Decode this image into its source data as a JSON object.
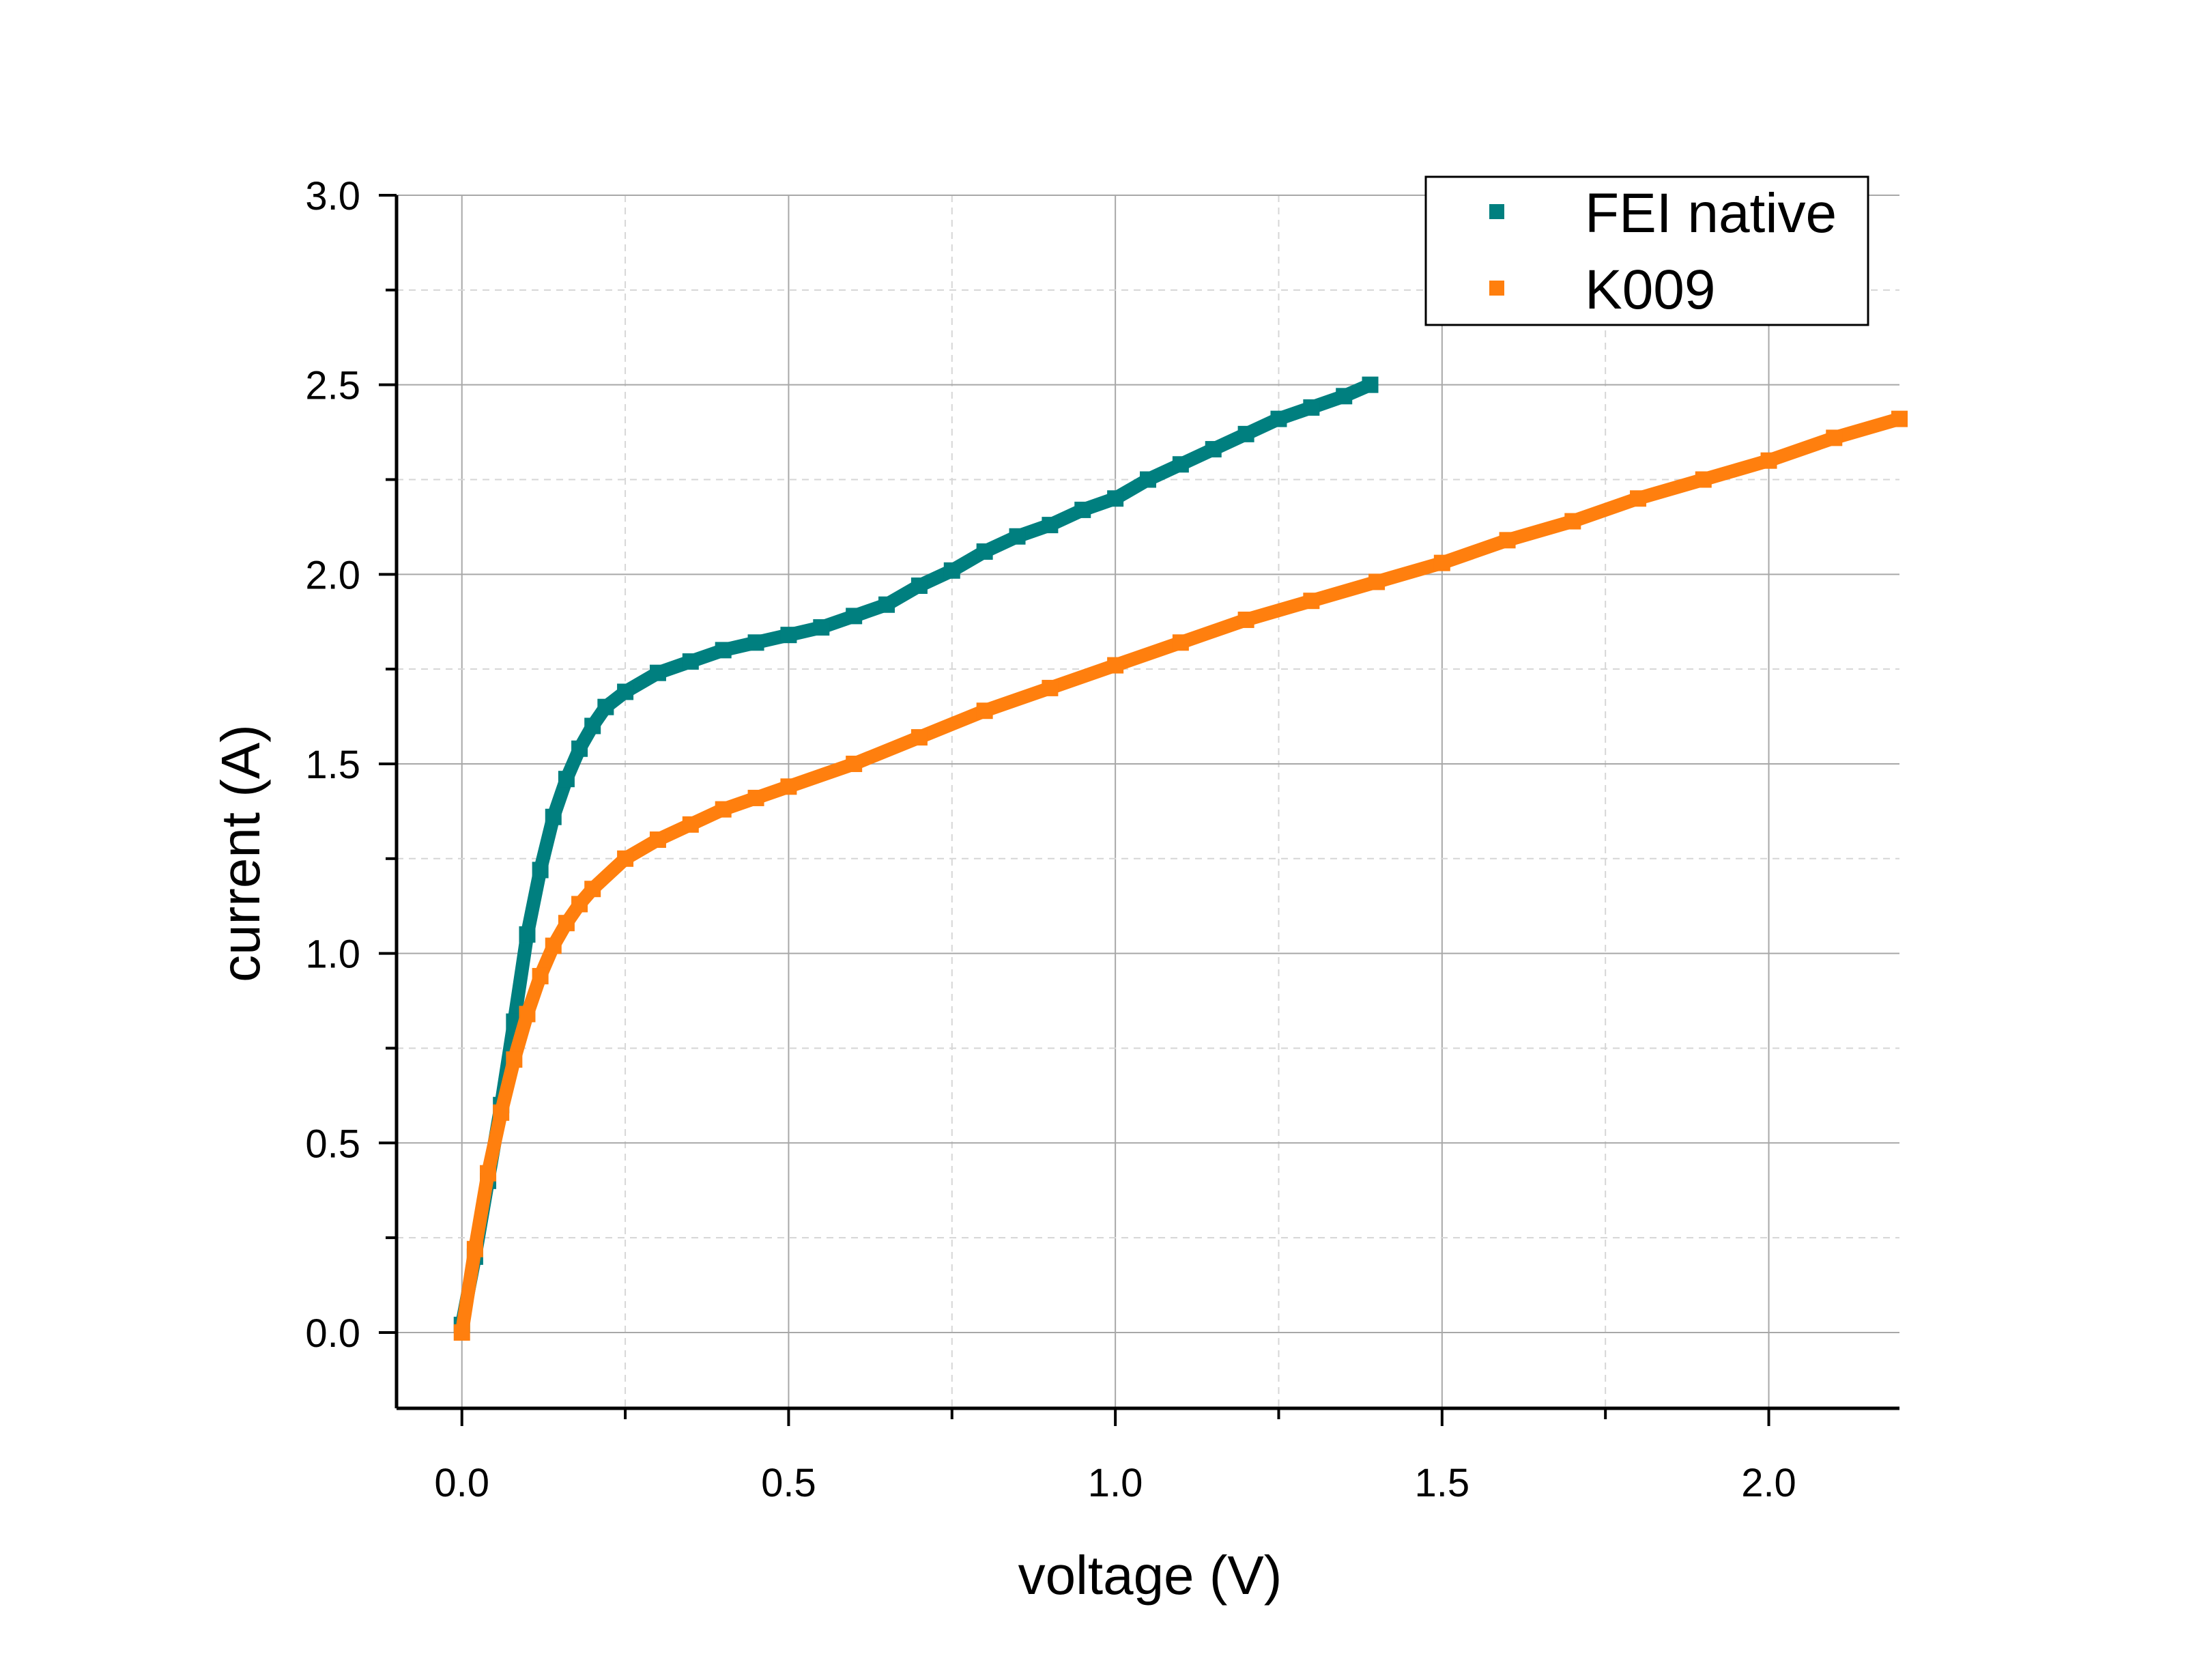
{
  "chart_data": {
    "type": "scatter",
    "xlabel": "voltage (V)",
    "ylabel": "current (A)",
    "xlim": [
      -0.1,
      2.2
    ],
    "ylim": [
      -0.2,
      3.0
    ],
    "x_ticks": [
      "0.0",
      "0.5",
      "1.0",
      "1.5",
      "2.0"
    ],
    "y_ticks": [
      "0.0",
      "0.5",
      "1.0",
      "1.5",
      "2.0",
      "2.5",
      "3.0"
    ],
    "grid": true,
    "legend_position": "top-right",
    "series": [
      {
        "name": "FEI native",
        "color": "#007f7f",
        "points": [
          [
            0.0,
            0.02
          ],
          [
            0.02,
            0.2
          ],
          [
            0.04,
            0.4
          ],
          [
            0.06,
            0.6
          ],
          [
            0.08,
            0.82
          ],
          [
            0.1,
            1.05
          ],
          [
            0.12,
            1.22
          ],
          [
            0.14,
            1.36
          ],
          [
            0.16,
            1.46
          ],
          [
            0.18,
            1.54
          ],
          [
            0.2,
            1.6
          ],
          [
            0.22,
            1.65
          ],
          [
            0.25,
            1.69
          ],
          [
            0.3,
            1.74
          ],
          [
            0.35,
            1.77
          ],
          [
            0.4,
            1.8
          ],
          [
            0.45,
            1.82
          ],
          [
            0.5,
            1.84
          ],
          [
            0.55,
            1.86
          ],
          [
            0.6,
            1.89
          ],
          [
            0.65,
            1.92
          ],
          [
            0.7,
            1.97
          ],
          [
            0.75,
            2.01
          ],
          [
            0.8,
            2.06
          ],
          [
            0.85,
            2.1
          ],
          [
            0.9,
            2.13
          ],
          [
            0.95,
            2.17
          ],
          [
            1.0,
            2.2
          ],
          [
            1.05,
            2.25
          ],
          [
            1.1,
            2.29
          ],
          [
            1.15,
            2.33
          ],
          [
            1.2,
            2.37
          ],
          [
            1.25,
            2.41
          ],
          [
            1.3,
            2.44
          ],
          [
            1.35,
            2.47
          ],
          [
            1.39,
            2.5
          ]
        ]
      },
      {
        "name": "K009",
        "color": "#ff7f0e",
        "points": [
          [
            0.0,
            0.0
          ],
          [
            0.02,
            0.22
          ],
          [
            0.04,
            0.42
          ],
          [
            0.06,
            0.58
          ],
          [
            0.08,
            0.72
          ],
          [
            0.1,
            0.84
          ],
          [
            0.12,
            0.94
          ],
          [
            0.14,
            1.02
          ],
          [
            0.16,
            1.08
          ],
          [
            0.18,
            1.13
          ],
          [
            0.2,
            1.17
          ],
          [
            0.25,
            1.25
          ],
          [
            0.3,
            1.3
          ],
          [
            0.35,
            1.34
          ],
          [
            0.4,
            1.38
          ],
          [
            0.45,
            1.41
          ],
          [
            0.5,
            1.44
          ],
          [
            0.6,
            1.5
          ],
          [
            0.7,
            1.57
          ],
          [
            0.8,
            1.64
          ],
          [
            0.9,
            1.7
          ],
          [
            1.0,
            1.76
          ],
          [
            1.1,
            1.82
          ],
          [
            1.2,
            1.88
          ],
          [
            1.3,
            1.93
          ],
          [
            1.4,
            1.98
          ],
          [
            1.5,
            2.03
          ],
          [
            1.6,
            2.09
          ],
          [
            1.7,
            2.14
          ],
          [
            1.8,
            2.2
          ],
          [
            1.9,
            2.25
          ],
          [
            2.0,
            2.3
          ],
          [
            2.1,
            2.36
          ],
          [
            2.2,
            2.41
          ]
        ]
      }
    ]
  }
}
